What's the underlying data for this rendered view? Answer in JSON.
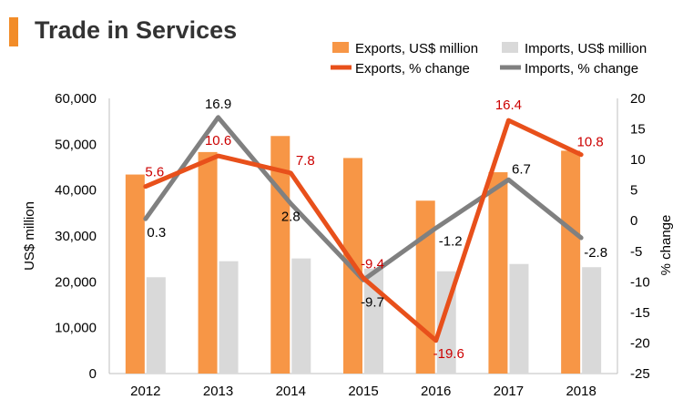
{
  "colors": {
    "exports_bar": "#f79646",
    "imports_bar": "#d9d9d9",
    "exports_line": "#e8501b",
    "imports_line": "#808080",
    "exports_label": "#cc0000",
    "imports_label": "#000000",
    "title_accent": "#f28c28"
  },
  "chart_data": {
    "type": "bar",
    "title": "Trade in Services",
    "categories": [
      "2012",
      "2013",
      "2014",
      "2015",
      "2016",
      "2017",
      "2018"
    ],
    "ylabel": "US$ million",
    "y2label": "% change",
    "ylim": [
      0,
      60000
    ],
    "y2lim": [
      -25,
      20
    ],
    "yticks": [
      "0",
      "10,000",
      "20,000",
      "30,000",
      "40,000",
      "50,000",
      "60,000"
    ],
    "y2ticks": [
      "-25",
      "-20",
      "-15",
      "-10",
      "-5",
      "0",
      "5",
      "10",
      "15",
      "20"
    ],
    "legend": {
      "exports_bar": "Exports, US$ million",
      "imports_bar": "Imports, US$ million",
      "exports_line": "Exports, % change",
      "imports_line": "Imports, % change"
    },
    "legend_position": "top-right",
    "grid": false,
    "series": [
      {
        "name": "Exports, US$ million",
        "kind": "bar",
        "axis": "left",
        "values": [
          43400,
          48300,
          51800,
          47000,
          37700,
          43900,
          48600
        ]
      },
      {
        "name": "Imports, US$ million",
        "kind": "bar",
        "axis": "left",
        "values": [
          21000,
          24500,
          25100,
          22900,
          22300,
          23900,
          23200
        ]
      },
      {
        "name": "Exports, % change",
        "kind": "line",
        "axis": "right",
        "values": [
          5.6,
          10.6,
          7.8,
          -9.4,
          -19.6,
          16.4,
          10.8
        ],
        "labels": [
          "5.6",
          "10.6",
          "7.8",
          "-9.4",
          "-19.6",
          "16.4",
          "10.8"
        ]
      },
      {
        "name": "Imports, % change",
        "kind": "line",
        "axis": "right",
        "values": [
          0.3,
          16.9,
          2.8,
          -9.7,
          -1.2,
          6.7,
          -2.8
        ],
        "labels": [
          "0.3",
          "16.9",
          "2.8",
          "-9.7",
          "-1.2",
          "6.7",
          "-2.8"
        ]
      }
    ]
  }
}
